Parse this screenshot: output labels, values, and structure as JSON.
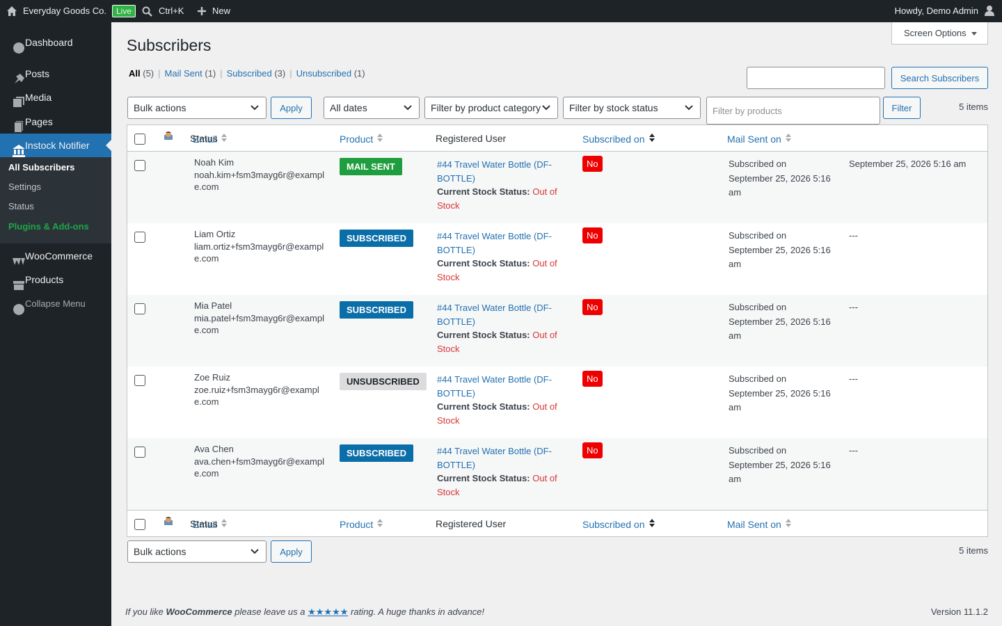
{
  "admin_bar": {
    "site": "Everyday Goods Co.",
    "live": "Live",
    "search": "Ctrl+K",
    "new": "New",
    "greeting": "Howdy, Demo Admin"
  },
  "menu": {
    "items": [
      "Dashboard",
      "Posts",
      "Media",
      "Pages",
      "Instock Notifier"
    ],
    "submenu": [
      "All Subscribers",
      "Settings",
      "Status",
      "Plugins & Add-ons"
    ],
    "items_after": [
      "WooCommerce",
      "Products"
    ],
    "collapse": "Collapse Menu"
  },
  "page": {
    "title": "Subscribers",
    "screen_options": "Screen Options",
    "views": [
      {
        "label": "All",
        "count": "(5)"
      },
      {
        "label": "Mail Sent",
        "count": "(1)"
      },
      {
        "label": "Subscribed",
        "count": "(3)"
      },
      {
        "label": "Unsubscribed",
        "count": "(1)"
      }
    ],
    "search_button": "Search Subscribers",
    "bulk_actions": "Bulk actions",
    "apply": "Apply",
    "dates": "All dates",
    "category": "Filter by product category",
    "stock": "Filter by stock status",
    "products_placeholder": "Filter by products",
    "filter": "Filter",
    "items": "5 items"
  },
  "table": {
    "columns": [
      "Email",
      "Status",
      "Product",
      "Registered User",
      "Subscribed on",
      "Mail Sent on"
    ],
    "rows": [
      {
        "name": "Noah Kim",
        "email": "noah.kim+fsm3mayg6r@example.com",
        "status": "MAIL SENT",
        "status_color": "#1e9e3e",
        "product": "#44 Travel Water Bottle (DF-BOTTLE)",
        "stock_label": "Current Stock Status:",
        "stock": "Out of Stock",
        "registered": "No",
        "subscribed_label": "Subscribed on",
        "subscribed": "September 25, 2026 5:16 am",
        "mail_sent": "September 25, 2026 5:16 am"
      },
      {
        "name": "Liam Ortiz",
        "email": "liam.ortiz+fsm3mayg6r@example.com",
        "status": "SUBSCRIBED",
        "status_color": "#0a6ea8",
        "product": "#44 Travel Water Bottle (DF-BOTTLE)",
        "stock_label": "Current Stock Status:",
        "stock": "Out of Stock",
        "registered": "No",
        "subscribed_label": "Subscribed on",
        "subscribed": "September 25, 2026 5:16 am",
        "mail_sent": "---"
      },
      {
        "name": "Mia Patel",
        "email": "mia.patel+fsm3mayg6r@example.com",
        "status": "SUBSCRIBED",
        "status_color": "#0a6ea8",
        "product": "#44 Travel Water Bottle (DF-BOTTLE)",
        "stock_label": "Current Stock Status:",
        "stock": "Out of Stock",
        "registered": "No",
        "subscribed_label": "Subscribed on",
        "subscribed": "September 25, 2026 5:16 am",
        "mail_sent": "---"
      },
      {
        "name": "Zoe Ruiz",
        "email": "zoe.ruiz+fsm3mayg6r@example.com",
        "status": "UNSUBSCRIBED",
        "status_color": "#dcdcde",
        "product": "#44 Travel Water Bottle (DF-BOTTLE)",
        "stock_label": "Current Stock Status:",
        "stock": "Out of Stock",
        "registered": "No",
        "subscribed_label": "Subscribed on",
        "subscribed": "September 25, 2026 5:16 am",
        "mail_sent": "---"
      },
      {
        "name": "Ava Chen",
        "email": "ava.chen+fsm3mayg6r@example.com",
        "status": "SUBSCRIBED",
        "status_color": "#0a6ea8",
        "product": "#44 Travel Water Bottle (DF-BOTTLE)",
        "stock_label": "Current Stock Status:",
        "stock": "Out of Stock",
        "registered": "No",
        "subscribed_label": "Subscribed on",
        "subscribed": "September 25, 2026 5:16 am",
        "mail_sent": "---"
      }
    ]
  },
  "footer": {
    "text_1": "If you like",
    "brand": "WooCommerce",
    "text_2": "please leave us a",
    "stars": "★★★★★",
    "text_3": "rating. A huge thanks in advance!",
    "version": "Version 11.1.2"
  }
}
